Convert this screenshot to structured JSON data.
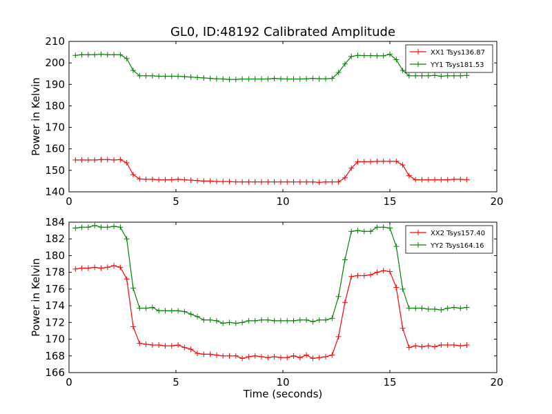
{
  "figure_title": "GL0, ID:48192 Calibrated Amplitude",
  "chart_data": [
    {
      "type": "line",
      "title": "GL0, ID:48192 Calibrated Amplitude",
      "xlabel": "",
      "ylabel": "Power in Kelvin",
      "xlim": [
        0,
        20
      ],
      "ylim": [
        140,
        210
      ],
      "xticks": [
        0,
        5,
        10,
        15,
        20
      ],
      "yticks": [
        140,
        150,
        160,
        170,
        180,
        190,
        200,
        210
      ],
      "grid": false,
      "legend_position": "top-right",
      "x": [
        0.3,
        0.6,
        0.9,
        1.2,
        1.5,
        1.8,
        2.1,
        2.4,
        2.7,
        3.0,
        3.3,
        3.6,
        3.9,
        4.2,
        4.5,
        4.8,
        5.1,
        5.4,
        5.7,
        6.0,
        6.3,
        6.6,
        6.9,
        7.2,
        7.5,
        7.8,
        8.1,
        8.4,
        8.7,
        9.0,
        9.3,
        9.6,
        9.9,
        10.2,
        10.5,
        10.8,
        11.1,
        11.4,
        11.7,
        12.0,
        12.3,
        12.6,
        12.9,
        13.2,
        13.5,
        13.8,
        14.1,
        14.4,
        14.7,
        15.0,
        15.3,
        15.6,
        15.9,
        16.2,
        16.5,
        16.8,
        17.1,
        17.4,
        17.7,
        18.0,
        18.3,
        18.6
      ],
      "series": [
        {
          "name": "XX1 Tsys136.87",
          "color": "#ff0000",
          "values": [
            154.8,
            154.8,
            154.8,
            154.8,
            155.0,
            155.0,
            154.8,
            155.0,
            153.5,
            148.0,
            146.0,
            145.8,
            145.8,
            145.6,
            145.6,
            145.6,
            145.8,
            145.6,
            145.4,
            145.2,
            145.0,
            145.0,
            144.8,
            144.8,
            144.8,
            144.6,
            144.6,
            144.6,
            144.6,
            144.6,
            144.6,
            144.6,
            144.6,
            144.6,
            144.6,
            144.6,
            144.6,
            144.6,
            144.4,
            144.6,
            144.6,
            144.6,
            146.5,
            151.0,
            154.0,
            154.0,
            154.0,
            154.2,
            154.2,
            154.2,
            154.2,
            152.5,
            147.5,
            145.6,
            145.6,
            145.6,
            145.6,
            145.6,
            145.6,
            145.8,
            145.8,
            145.6
          ]
        },
        {
          "name": "YY1 Tsys181.53",
          "color": "#008000",
          "values": [
            203.5,
            203.8,
            203.8,
            203.8,
            204.0,
            203.8,
            203.8,
            203.8,
            202.0,
            196.5,
            194.0,
            194.0,
            194.0,
            193.8,
            193.8,
            193.8,
            193.8,
            193.6,
            193.4,
            193.2,
            193.0,
            192.8,
            192.6,
            192.5,
            192.3,
            192.3,
            192.5,
            192.5,
            192.5,
            192.5,
            192.5,
            192.8,
            192.6,
            192.5,
            192.5,
            192.5,
            192.6,
            192.8,
            192.6,
            192.6,
            192.8,
            195.5,
            199.5,
            203.0,
            203.5,
            203.4,
            203.4,
            203.3,
            203.3,
            204.0,
            201.5,
            196.5,
            194.0,
            194.0,
            194.0,
            194.0,
            194.2,
            193.8,
            194.0,
            194.0,
            194.0,
            194.2
          ]
        }
      ]
    },
    {
      "type": "line",
      "title": "",
      "xlabel": "Time (seconds)",
      "ylabel": "Power in Kelvin",
      "xlim": [
        0,
        20
      ],
      "ylim": [
        166,
        184
      ],
      "xticks": [
        0,
        5,
        10,
        15,
        20
      ],
      "yticks": [
        166,
        168,
        170,
        172,
        174,
        176,
        178,
        180,
        182,
        184
      ],
      "grid": false,
      "legend_position": "top-right",
      "x": [
        0.3,
        0.6,
        0.9,
        1.2,
        1.5,
        1.8,
        2.1,
        2.4,
        2.7,
        3.0,
        3.3,
        3.6,
        3.9,
        4.2,
        4.5,
        4.8,
        5.1,
        5.4,
        5.7,
        6.0,
        6.3,
        6.6,
        6.9,
        7.2,
        7.5,
        7.8,
        8.1,
        8.4,
        8.7,
        9.0,
        9.3,
        9.6,
        9.9,
        10.2,
        10.5,
        10.8,
        11.1,
        11.4,
        11.7,
        12.0,
        12.3,
        12.6,
        12.9,
        13.2,
        13.5,
        13.8,
        14.1,
        14.4,
        14.7,
        15.0,
        15.3,
        15.6,
        15.9,
        16.2,
        16.5,
        16.8,
        17.1,
        17.4,
        17.7,
        18.0,
        18.3,
        18.6
      ],
      "series": [
        {
          "name": "XX2 Tsys157.40",
          "color": "#ff0000",
          "values": [
            178.4,
            178.5,
            178.5,
            178.6,
            178.5,
            178.6,
            178.8,
            178.6,
            177.2,
            171.5,
            169.5,
            169.4,
            169.3,
            169.3,
            169.2,
            169.2,
            169.3,
            169.0,
            168.8,
            168.3,
            168.2,
            168.2,
            168.1,
            168.0,
            168.0,
            168.0,
            167.7,
            167.9,
            168.0,
            167.9,
            167.8,
            167.9,
            167.8,
            167.8,
            168.0,
            167.8,
            168.1,
            167.7,
            167.8,
            167.9,
            168.1,
            170.3,
            174.4,
            177.5,
            177.6,
            177.6,
            177.7,
            178.0,
            178.2,
            178.1,
            176.2,
            171.3,
            169.0,
            169.2,
            169.1,
            169.2,
            169.1,
            169.3,
            169.3,
            169.3,
            169.2,
            169.3
          ]
        },
        {
          "name": "YY2 Tsys164.16",
          "color": "#008000",
          "values": [
            183.3,
            183.4,
            183.4,
            183.6,
            183.4,
            183.4,
            183.5,
            183.4,
            182.0,
            176.1,
            173.7,
            173.7,
            173.8,
            173.4,
            173.4,
            173.4,
            173.4,
            173.3,
            173.0,
            172.7,
            172.3,
            172.3,
            172.2,
            171.9,
            172.0,
            171.9,
            172.0,
            172.2,
            172.2,
            172.3,
            172.3,
            172.2,
            172.2,
            172.2,
            172.2,
            172.3,
            172.3,
            172.1,
            172.3,
            172.3,
            172.5,
            175.1,
            179.5,
            182.9,
            183.0,
            182.9,
            182.9,
            183.4,
            183.4,
            183.3,
            181.1,
            176.0,
            173.7,
            173.7,
            173.7,
            173.6,
            173.6,
            173.5,
            173.7,
            173.8,
            173.7,
            173.8
          ]
        }
      ]
    }
  ]
}
